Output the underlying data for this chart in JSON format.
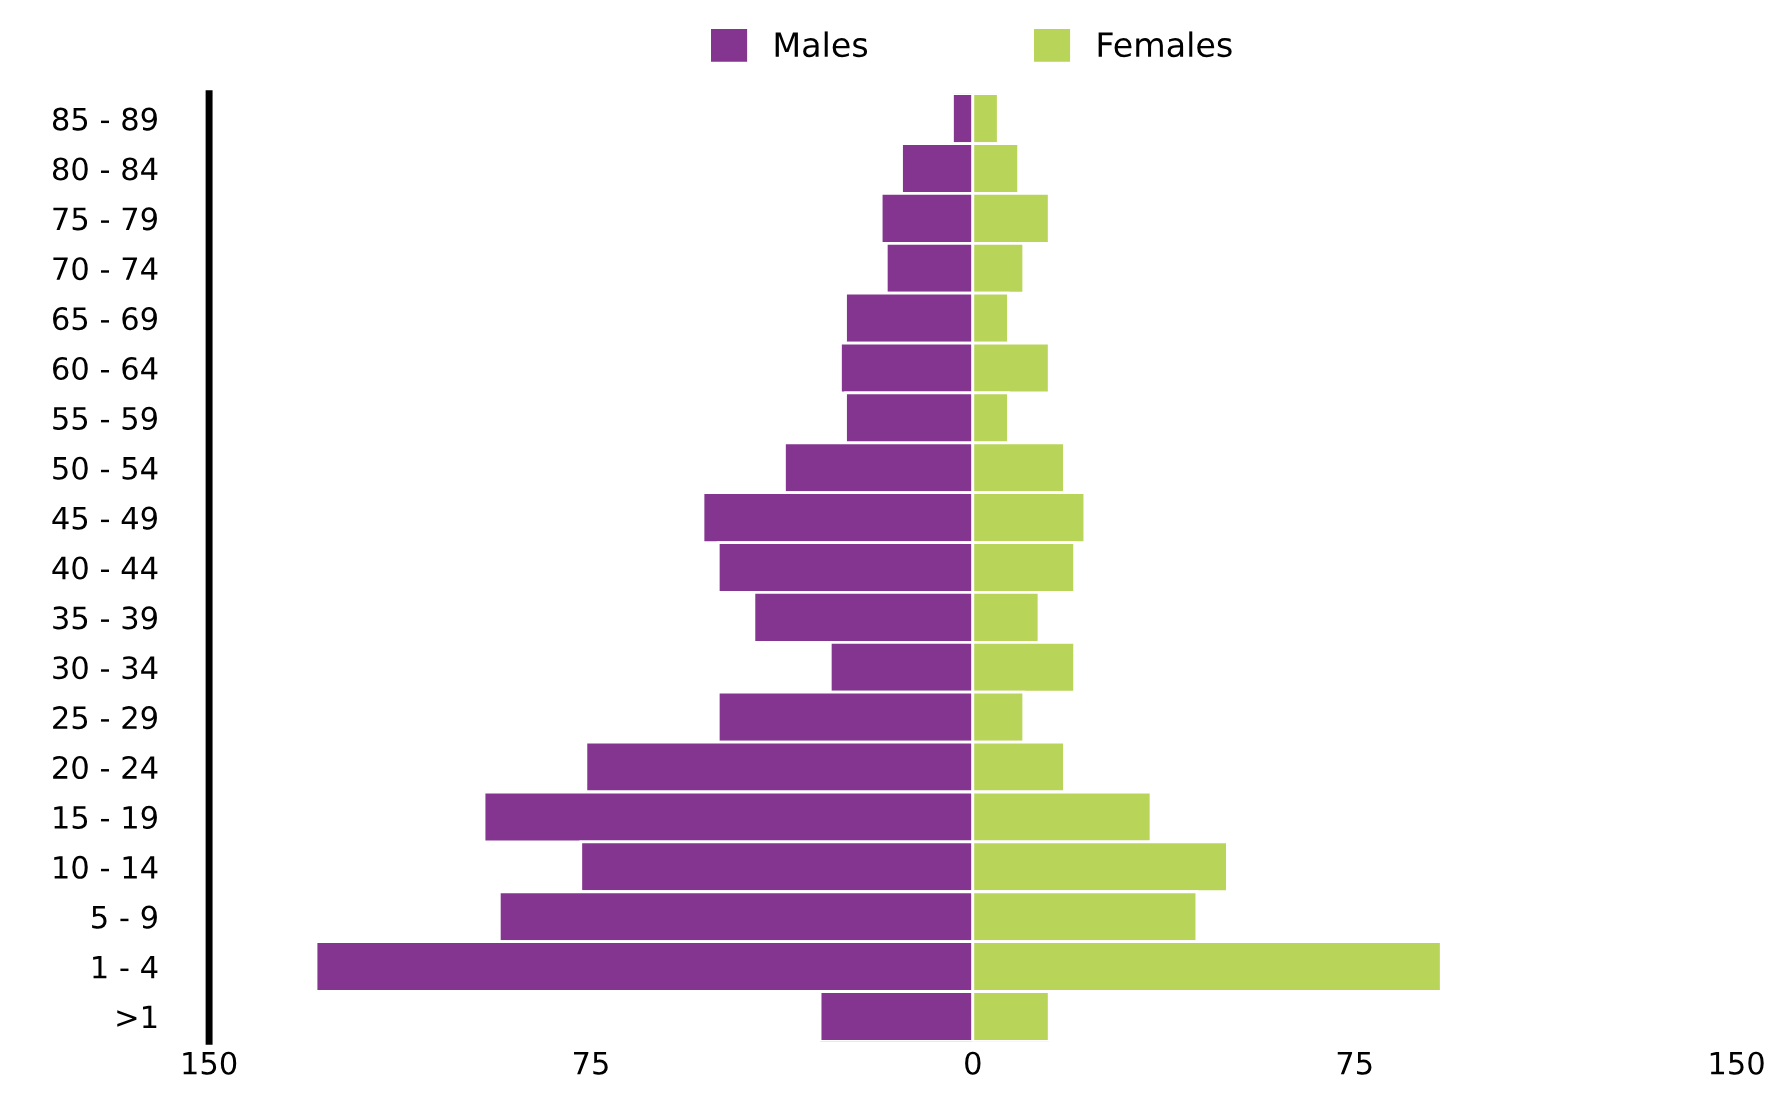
{
  "chart_data": {
    "type": "bar",
    "orientation": "horizontal",
    "stacked": true,
    "categories": [
      "85 - 89",
      "80 - 84",
      "75 - 79",
      "70 - 74",
      "65 - 69",
      "60 - 64",
      "55 - 59",
      "50 - 54",
      "45 - 49",
      "40 - 44",
      "35 - 39",
      "30 - 34",
      "25 - 29",
      "20 - 24",
      "15 - 19",
      "10 - 14",
      "5 - 9",
      "1 - 4",
      ">1"
    ],
    "series": [
      {
        "name": "Males",
        "color": "#84358f",
        "values": [
          -4,
          -14,
          -18,
          -17,
          -25,
          -26,
          -25,
          -37,
          -53,
          -50,
          -43,
          -28,
          -50,
          -76,
          -96,
          -77,
          -93,
          -129,
          -30
        ]
      },
      {
        "name": "Females",
        "color": "#b8d55a",
        "values": [
          5,
          9,
          15,
          10,
          7,
          15,
          7,
          18,
          22,
          20,
          13,
          20,
          10,
          18,
          35,
          50,
          44,
          92,
          15
        ]
      }
    ],
    "xlim": [
      -150,
      150
    ],
    "xticks": [
      {
        "value": -150,
        "label": "150"
      },
      {
        "value": -75,
        "label": "75"
      },
      0,
      75,
      150
    ],
    "grid": false,
    "legend": "top"
  }
}
